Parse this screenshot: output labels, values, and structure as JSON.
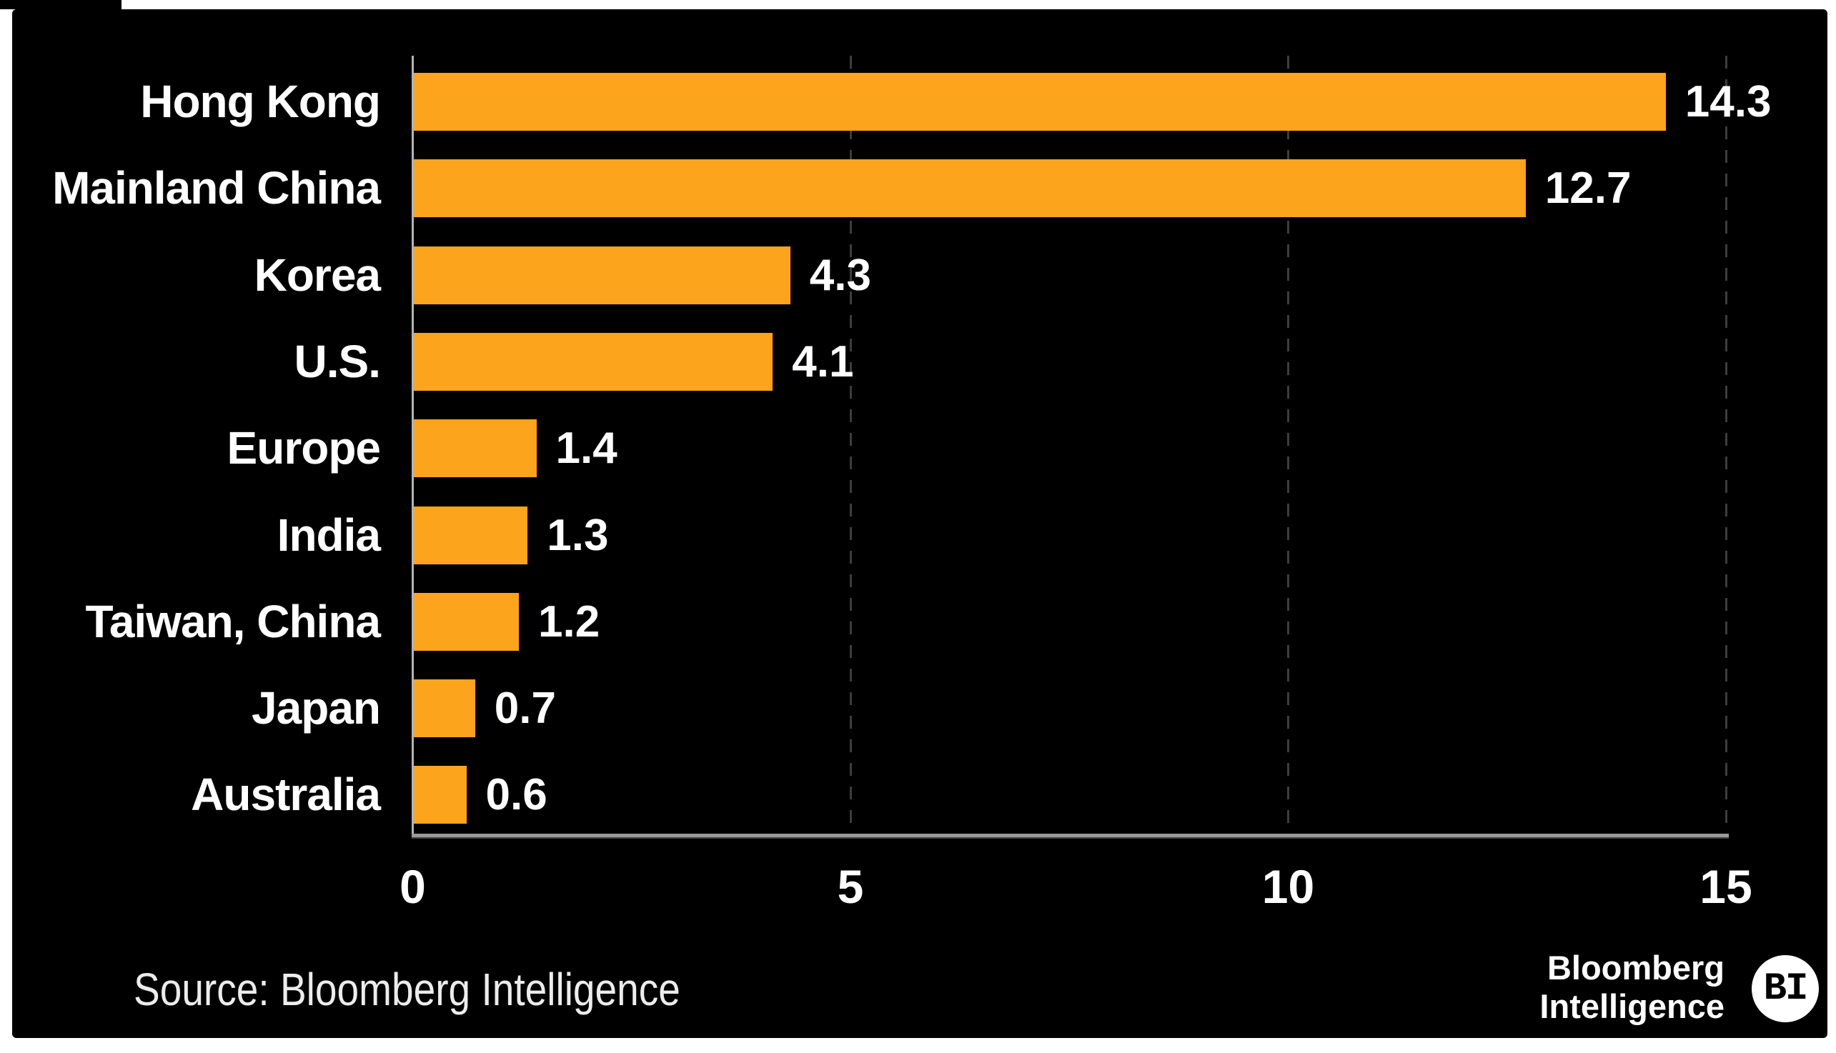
{
  "chart_data": {
    "type": "bar",
    "orientation": "horizontal",
    "categories": [
      "Hong Kong",
      "Mainland China",
      "Korea",
      "U.S.",
      "Europe",
      "India",
      "Taiwan, China",
      "Japan",
      "Australia"
    ],
    "values": [
      14.3,
      12.7,
      4.3,
      4.1,
      1.4,
      1.3,
      1.2,
      0.7,
      0.6
    ],
    "value_labels": [
      "14.3",
      "12.7",
      "4.3",
      "4.1",
      "1.4",
      "1.3",
      "1.2",
      "0.7",
      "0.6"
    ],
    "title": "",
    "xlabel": "",
    "ylabel": "",
    "xlim": [
      0,
      15
    ],
    "x_ticks": [
      0,
      5,
      10,
      15
    ],
    "x_tick_labels": [
      "0",
      "5",
      "10",
      "15"
    ],
    "gridline_ticks": [
      5,
      10,
      15
    ],
    "grid_style": "dashed-vertical",
    "legend": "none",
    "bar_color": "#FCA41C",
    "label_color": "#FFFFFF",
    "background_color": "#000000"
  },
  "footer": {
    "source": "Source: Bloomberg Intelligence",
    "logo_line1": "Bloomberg",
    "logo_line2": "Intelligence",
    "logo_badge": "BI"
  }
}
